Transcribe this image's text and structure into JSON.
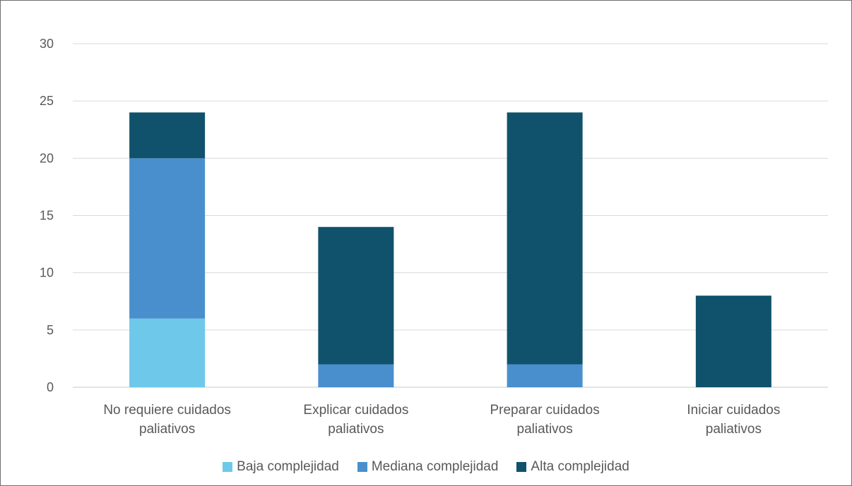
{
  "chart_data": {
    "type": "bar",
    "stacked": true,
    "categories": [
      [
        "No requiere cuidados",
        "paliativos"
      ],
      [
        "Explicar cuidados",
        "paliativos"
      ],
      [
        "Preparar cuidados",
        "paliativos"
      ],
      [
        "Iniciar cuidados",
        "paliativos"
      ]
    ],
    "series": [
      {
        "name": "Baja complejidad",
        "color": "#6ec8ea",
        "values": [
          6,
          0,
          0,
          0
        ]
      },
      {
        "name": "Mediana complejidad",
        "color": "#4a8fcd",
        "values": [
          14,
          2,
          2,
          0
        ]
      },
      {
        "name": "Alta complejidad",
        "color": "#10526b",
        "values": [
          4,
          12,
          22,
          8
        ]
      }
    ],
    "ylim": [
      0,
      30
    ],
    "yticks": [
      0,
      5,
      10,
      15,
      20,
      25,
      30
    ],
    "grid": true,
    "legend_position": "bottom"
  }
}
